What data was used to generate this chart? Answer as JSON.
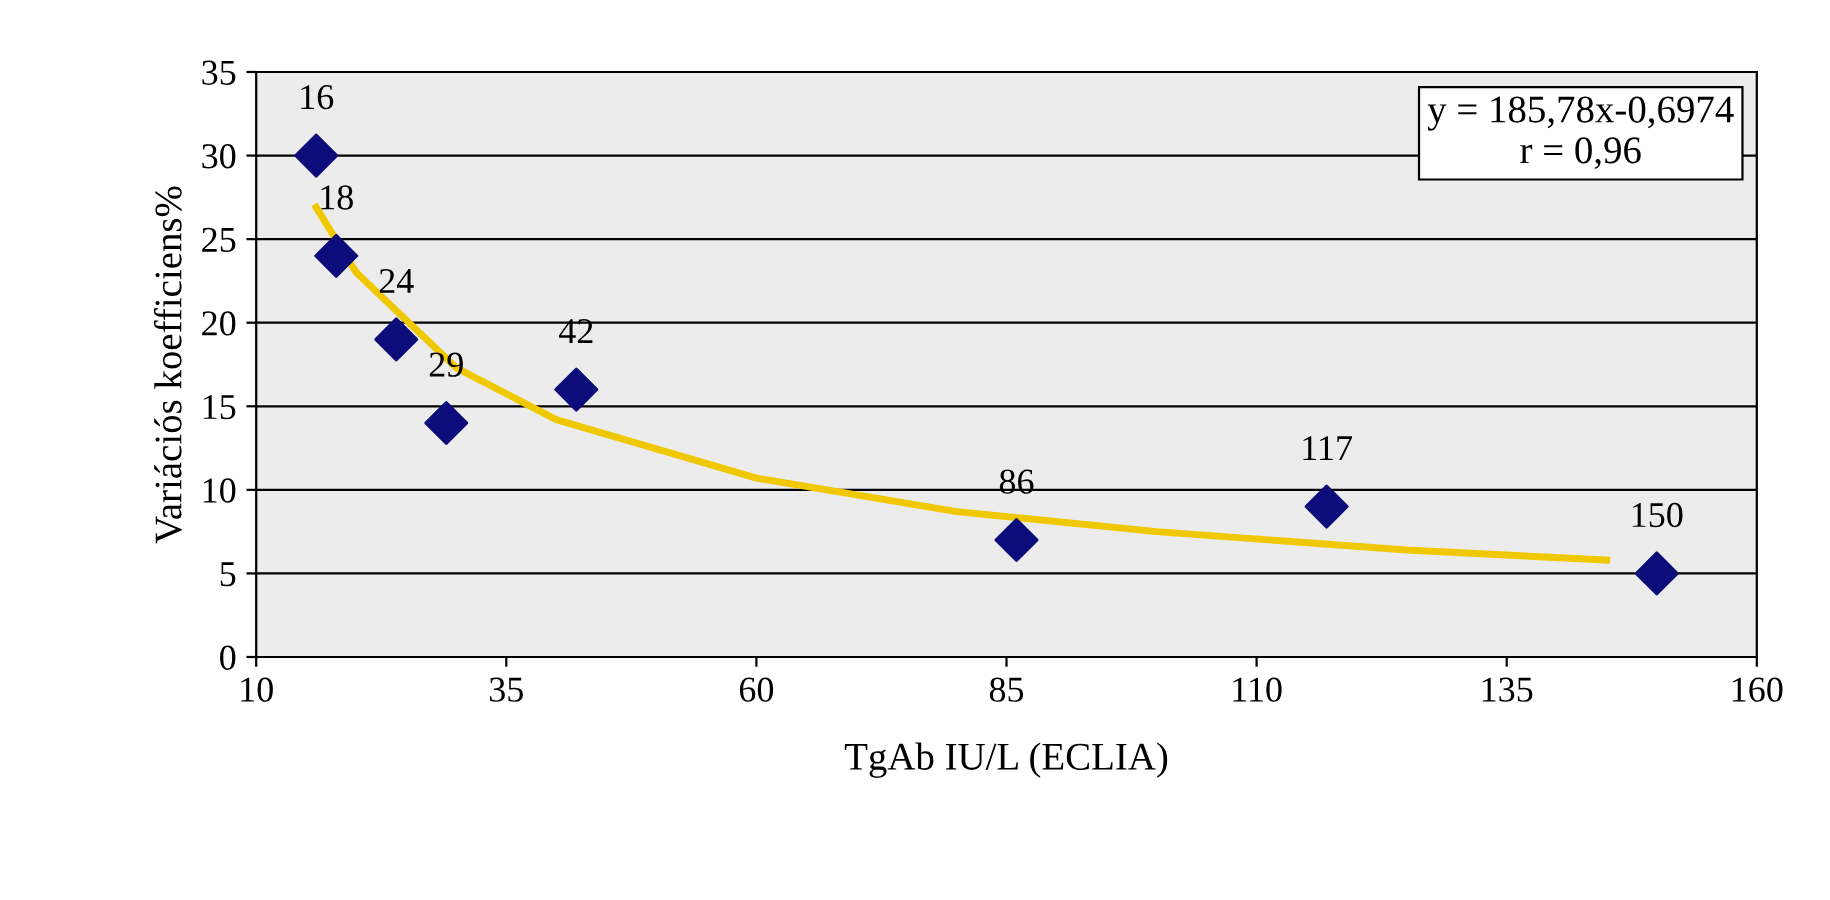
{
  "chart_data": {
    "type": "scatter",
    "xlabel": "TgAb IU/L (ECLIA)",
    "ylabel": "Variációs koefficiens%",
    "xlim": [
      10,
      160
    ],
    "xticks": [
      10,
      35,
      60,
      85,
      110,
      135,
      160
    ],
    "ylim": [
      0,
      35
    ],
    "yticks": [
      0,
      5,
      10,
      15,
      20,
      25,
      30,
      35
    ],
    "grid": "y",
    "legend": false,
    "annotations": [
      "y = 185,78x-0,6974\nr = 0,96",
      {
        "text": "16",
        "x": 16,
        "y": 30
      },
      {
        "text": "18",
        "x": 18,
        "y": 24
      },
      {
        "text": "24",
        "x": 24,
        "y": 19
      },
      {
        "text": "29",
        "x": 29,
        "y": 14
      },
      {
        "text": "42",
        "x": 42,
        "y": 16
      },
      {
        "text": "86",
        "x": 86,
        "y": 7
      },
      {
        "text": "117",
        "x": 117,
        "y": 9
      },
      {
        "text": "150",
        "x": 150,
        "y": 5
      }
    ],
    "series": [
      {
        "color": "#0c0c7a",
        "marker": "diamond",
        "x": [
          16,
          18,
          24,
          29,
          42,
          86,
          117,
          150
        ],
        "values": [
          30,
          24,
          19,
          14,
          16,
          7,
          9,
          5
        ]
      },
      {
        "type": "line",
        "color": "#f0c800",
        "marker": "none",
        "x": [
          16,
          20,
          30,
          40,
          60,
          80,
          100,
          125,
          145
        ],
        "values": [
          26.9,
          23.0,
          17.3,
          14.2,
          10.7,
          8.7,
          7.5,
          6.4,
          5.8
        ]
      }
    ]
  }
}
